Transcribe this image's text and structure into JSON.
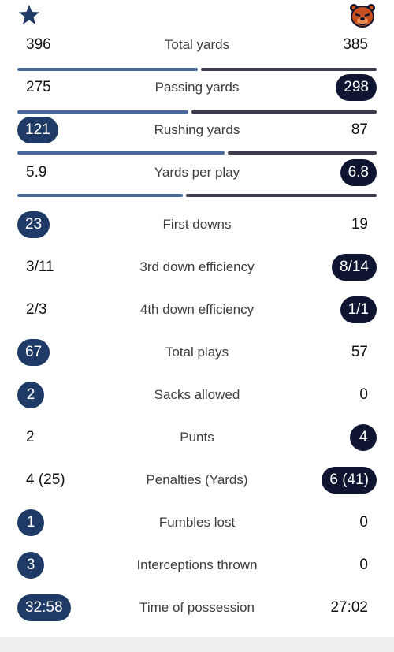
{
  "colors": {
    "home": "#1f3a66",
    "away": "#0f1430",
    "bar_home": "#4a6a9a",
    "bar_away": "#3c3c4e"
  },
  "teams": {
    "home_logo_icon": "star-icon",
    "away_logo_icon": "bear-head-icon"
  },
  "stats": [
    {
      "label": "Total yards",
      "home": "396",
      "away": "385",
      "leader": "none",
      "home_share": 0.507
    },
    {
      "label": "Passing yards",
      "home": "275",
      "away": "298",
      "leader": "away",
      "home_share": 0.48
    },
    {
      "label": "Rushing yards",
      "home": "121",
      "away": "87",
      "leader": "home",
      "home_share": 0.582
    },
    {
      "label": "Yards per play",
      "home": "5.9",
      "away": "6.8",
      "leader": "away",
      "home_share": 0.465
    },
    {
      "label": "First downs",
      "home": "23",
      "away": "19",
      "leader": "home"
    },
    {
      "label": "3rd down efficiency",
      "home": "3/11",
      "away": "8/14",
      "leader": "away"
    },
    {
      "label": "4th down efficiency",
      "home": "2/3",
      "away": "1/1",
      "leader": "away"
    },
    {
      "label": "Total plays",
      "home": "67",
      "away": "57",
      "leader": "home"
    },
    {
      "label": "Sacks allowed",
      "home": "2",
      "away": "0",
      "leader": "home"
    },
    {
      "label": "Punts",
      "home": "2",
      "away": "4",
      "leader": "away"
    },
    {
      "label": "Penalties (Yards)",
      "home": "4 (25)",
      "away": "6 (41)",
      "leader": "away"
    },
    {
      "label": "Fumbles lost",
      "home": "1",
      "away": "0",
      "leader": "home"
    },
    {
      "label": "Interceptions thrown",
      "home": "3",
      "away": "0",
      "leader": "home"
    },
    {
      "label": "Time of possession",
      "home": "32:58",
      "away": "27:02",
      "leader": "home"
    }
  ]
}
